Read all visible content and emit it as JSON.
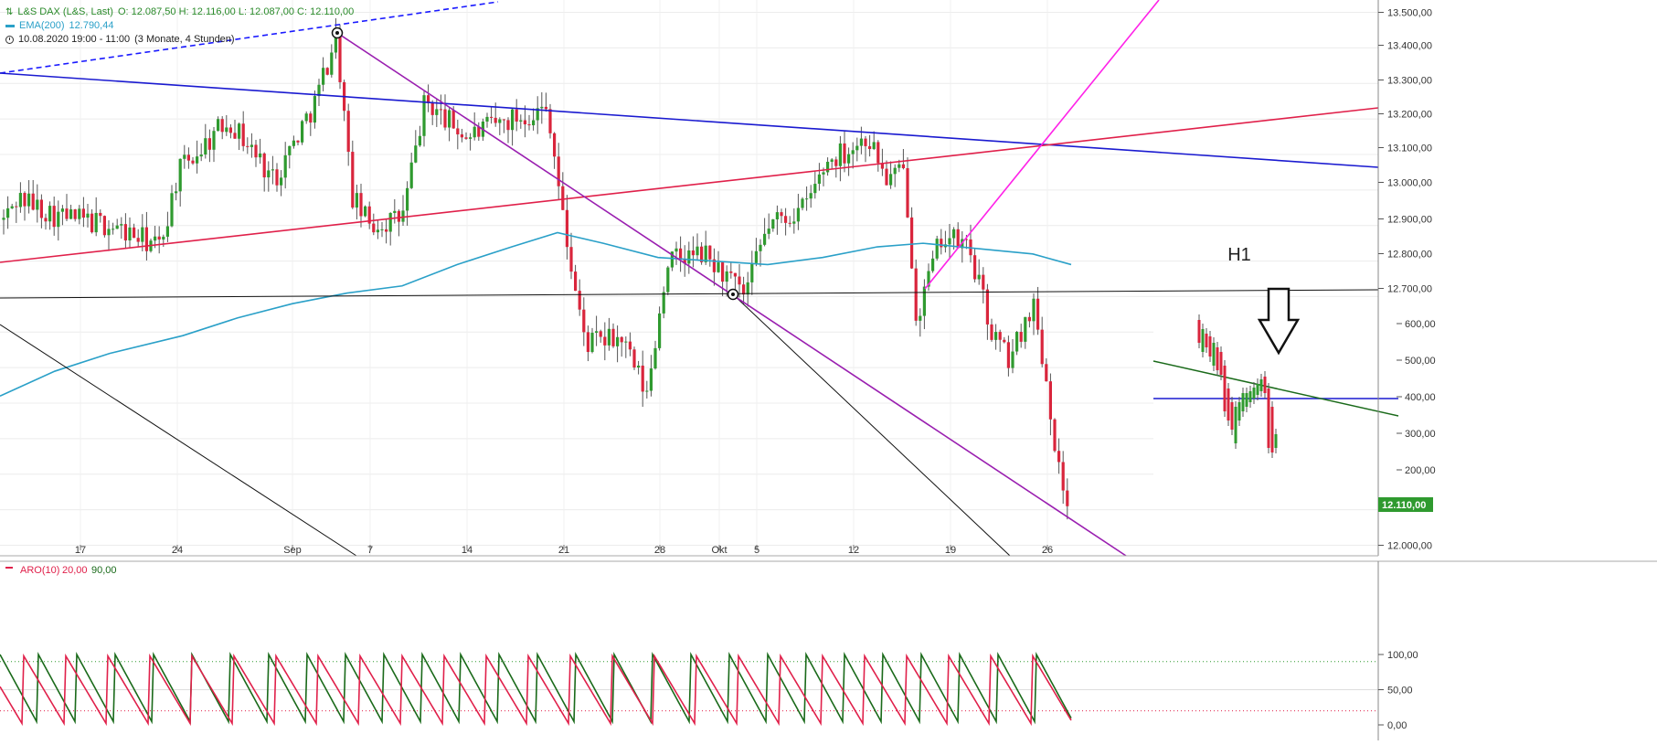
{
  "legend": {
    "title": "L&S DAX (L&S, Last)",
    "ohlc": "O: 12.087,50  H: 12.116,00  L: 12.087,00  C: 12.110,00",
    "ema_label": "EMA(200)",
    "ema_value": "12.790,44",
    "range": "10.08.2020 19:00 - 11:00",
    "interval": "(3 Monate, 4 Stunden)",
    "colors": {
      "title": "#2a8a2a",
      "ema": "#2aa0c8"
    }
  },
  "annotation": {
    "label": "H1"
  },
  "price_axis": {
    "ticks": [
      "13.500,00",
      "13.400,00",
      "13.300,00",
      "13.200,00",
      "13.100,00",
      "13.000,00",
      "12.900,00",
      "12.800,00",
      "12.700,00",
      "12.600,00",
      "12.500,00",
      "12.400,00",
      "12.300,00",
      "12.200,00",
      "12.000,00"
    ],
    "last_price": "12.110,00"
  },
  "inset_axis": {
    "ticks": [
      "600,00",
      "500,00",
      "400,00",
      "300,00",
      "200,00"
    ]
  },
  "time_axis": {
    "labels": [
      "17",
      "24",
      "Sep",
      "7",
      "14",
      "21",
      "28",
      "Okt",
      "5",
      "12",
      "19",
      "26"
    ]
  },
  "indicator": {
    "name": "ARO(10)",
    "params": [
      "20,00",
      "90,00"
    ],
    "axis": [
      "100,00",
      "50,00",
      "0,00"
    ],
    "colors": {
      "up": "#1a6a1a",
      "down": "#e0204a"
    }
  },
  "chart_data": [
    {
      "type": "candlestick",
      "title": "L&S DAX (L&S, Last)",
      "interval": "4 Stunden",
      "y_range": [
        11970,
        13520
      ],
      "last_close": 12110,
      "last_bar": {
        "open": 12087.5,
        "high": 12116,
        "low": 12087,
        "close": 12110
      },
      "ema200_last": 12790.44,
      "ohlc_approx": [
        {
          "date": "Aug 10-14",
          "open": 12790,
          "high": 13110,
          "low": 12700,
          "close": 13000
        },
        {
          "date": "Aug 17-21",
          "open": 12990,
          "high": 13040,
          "low": 12830,
          "close": 12930
        },
        {
          "date": "Aug 24-28",
          "open": 12880,
          "high": 13260,
          "low": 12630,
          "close": 13070
        },
        {
          "date": "Aug 31-Sep 4",
          "open": 13070,
          "high": 13460,
          "low": 12750,
          "close": 12910
        },
        {
          "date": "Sep 7-11",
          "open": 12910,
          "high": 13260,
          "low": 12860,
          "close": 13110
        },
        {
          "date": "Sep 14-18",
          "open": 13110,
          "high": 13340,
          "low": 13030,
          "close": 13220
        },
        {
          "date": "Sep 21-25",
          "open": 13220,
          "high": 13240,
          "low": 12340,
          "close": 12580
        },
        {
          "date": "Sep 28-Okt 2",
          "open": 12580,
          "high": 12910,
          "low": 12520,
          "close": 12750
        },
        {
          "date": "Okt 5-9",
          "open": 12760,
          "high": 13080,
          "low": 12640,
          "close": 13030
        },
        {
          "date": "Okt 12-16",
          "open": 13030,
          "high": 13180,
          "low": 12600,
          "close": 12850
        },
        {
          "date": "Okt 19-23",
          "open": 12850,
          "high": 13040,
          "low": 12350,
          "close": 12650
        },
        {
          "date": "Okt 26-28",
          "open": 12650,
          "high": 12700,
          "low": 12080,
          "close": 12110
        }
      ],
      "ema200_path": [
        12420,
        12530,
        12620,
        12680,
        12780,
        12860,
        12880,
        12800,
        12790,
        12830,
        12860,
        12790
      ]
    },
    {
      "type": "line",
      "title": "ARO(10)",
      "y_range": [
        0,
        100
      ],
      "levels": [
        20,
        90
      ]
    }
  ]
}
